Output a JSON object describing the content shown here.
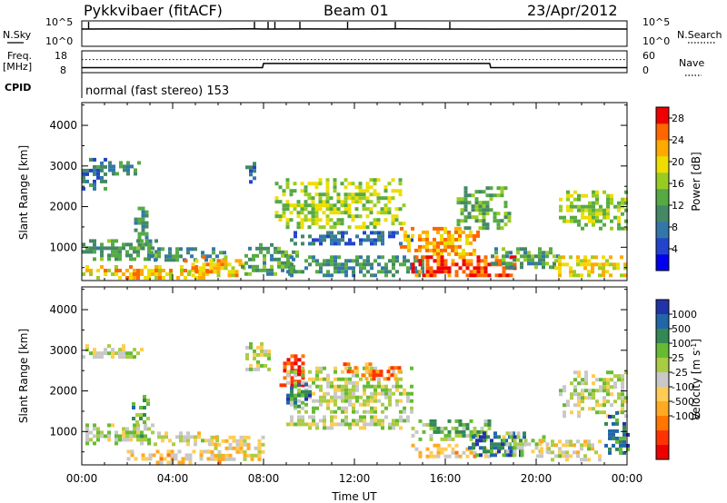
{
  "header": {
    "station": "Pykkvibaer (fitACF)",
    "beam": "Beam 01",
    "date": "23/Apr/2012"
  },
  "noise_panel": {
    "left_label": "N.Sky",
    "right_label": "N.Search",
    "left_ticks": [
      "10^5",
      "10^0"
    ],
    "right_ticks": [
      "10^5",
      "10^0"
    ]
  },
  "freq_panel": {
    "left_label_1": "Freq.",
    "left_label_2": "[MHz]",
    "right_label": "Nave",
    "left_ticks": [
      "18",
      "8"
    ],
    "right_ticks": [
      "60",
      "0"
    ]
  },
  "cpid": {
    "label": "CPID",
    "text": "normal (fast stereo) 153"
  },
  "chart_data": [
    {
      "type": "line",
      "name": "noise",
      "x_unit": "hours UT",
      "xlim": [
        0,
        24
      ],
      "log_scale": true,
      "left_ylim": [
        1,
        100000
      ],
      "series": [
        {
          "name": "N.Sky",
          "style": "solid",
          "x": [
            0,
            2,
            4,
            6,
            7.5,
            8,
            10,
            12,
            14,
            16,
            18,
            20,
            22,
            24
          ],
          "values": [
            2500,
            2600,
            2400,
            2500,
            2700,
            2500,
            2600,
            2500,
            2800,
            2500,
            2400,
            2500,
            2600,
            2500
          ]
        }
      ],
      "spikes_x": [
        0.3,
        7.6,
        8.2,
        8.5,
        9.6,
        11.7,
        13.8,
        16.2
      ]
    },
    {
      "type": "line",
      "name": "frequency",
      "x_unit": "hours UT",
      "xlim": [
        0,
        24
      ],
      "left_ylim": [
        8,
        18
      ],
      "right_ylim": [
        0,
        60
      ],
      "series": [
        {
          "name": "Freq.",
          "style": "solid",
          "axis": "left",
          "x": [
            0,
            7.95,
            8.0,
            17.95,
            18.0,
            24
          ],
          "values": [
            10.3,
            10.3,
            12.2,
            12.2,
            10.3,
            10.3
          ]
        },
        {
          "name": "Nave",
          "style": "dotted",
          "axis": "right",
          "x": [
            0,
            24
          ],
          "values": [
            36,
            36
          ]
        }
      ]
    },
    {
      "type": "heatmap",
      "name": "power",
      "x_unit": "hours UT",
      "xlim": [
        0,
        24
      ],
      "ylim": [
        180,
        4560
      ],
      "ylabel": "Slant Range [km]",
      "yticks": [
        "1000",
        "2000",
        "3000",
        "4000"
      ],
      "ytick_values": [
        1000,
        2000,
        3000,
        4000
      ],
      "colorbar": {
        "label": "Power [dB]",
        "ticks": [
          "4",
          "8",
          "12",
          "16",
          "20",
          "24",
          "28"
        ],
        "tick_values": [
          4,
          8,
          12,
          16,
          20,
          24,
          28
        ],
        "range": [
          0,
          30
        ],
        "colors": [
          "#0000ee",
          "#2244cc",
          "#3377aa",
          "#448866",
          "#55aa44",
          "#99cc22",
          "#eedd00",
          "#ffaa00",
          "#ff6600",
          "#ee0000"
        ]
      },
      "regions": [
        {
          "t0": 0.0,
          "t1": 1.1,
          "r0": 2450,
          "r1": 3200,
          "level": 0.28
        },
        {
          "t0": 1.0,
          "t1": 2.6,
          "r0": 2850,
          "r1": 3120,
          "level": 0.33
        },
        {
          "t0": 0.0,
          "t1": 3.3,
          "r0": 720,
          "r1": 1200,
          "level": 0.4
        },
        {
          "t0": 0.0,
          "t1": 5.5,
          "r0": 260,
          "r1": 560,
          "level": 0.72
        },
        {
          "t0": 2.3,
          "t1": 3.0,
          "r0": 1000,
          "r1": 2000,
          "level": 0.35
        },
        {
          "t0": 3.0,
          "t1": 6.3,
          "r0": 720,
          "r1": 1000,
          "level": 0.35
        },
        {
          "t0": 4.5,
          "t1": 7.2,
          "r0": 280,
          "r1": 800,
          "level": 0.7
        },
        {
          "t0": 7.2,
          "t1": 7.6,
          "r0": 2600,
          "r1": 3100,
          "level": 0.25
        },
        {
          "t0": 7.0,
          "t1": 9.5,
          "r0": 300,
          "r1": 1100,
          "level": 0.4
        },
        {
          "t0": 8.5,
          "t1": 14.2,
          "r0": 1500,
          "r1": 2700,
          "level": 0.55
        },
        {
          "t0": 9.0,
          "t1": 14.5,
          "r0": 1100,
          "r1": 1400,
          "level": 0.25
        },
        {
          "t0": 9.0,
          "t1": 15.0,
          "r0": 350,
          "r1": 800,
          "level": 0.35
        },
        {
          "t0": 14.0,
          "t1": 17.5,
          "r0": 850,
          "r1": 1500,
          "level": 0.75
        },
        {
          "t0": 14.5,
          "t1": 19.2,
          "r0": 280,
          "r1": 800,
          "level": 0.88
        },
        {
          "t0": 16.5,
          "t1": 18.8,
          "r0": 1500,
          "r1": 2500,
          "level": 0.45
        },
        {
          "t0": 18.0,
          "t1": 21.0,
          "r0": 500,
          "r1": 1000,
          "level": 0.4
        },
        {
          "t0": 20.8,
          "t1": 24.0,
          "r0": 300,
          "r1": 800,
          "level": 0.65
        },
        {
          "t0": 21.0,
          "t1": 24.0,
          "r0": 1500,
          "r1": 2400,
          "level": 0.55
        }
      ]
    },
    {
      "type": "heatmap",
      "name": "velocity",
      "x_unit": "hours UT",
      "xlim": [
        0,
        24
      ],
      "ylim": [
        180,
        4560
      ],
      "xlabel": "Time UT",
      "ylabel": "Slant Range [km]",
      "xticks": [
        "00:00",
        "04:00",
        "08:00",
        "12:00",
        "16:00",
        "20:00",
        "00:00"
      ],
      "xtick_values": [
        0,
        4,
        8,
        12,
        16,
        20,
        24
      ],
      "yticks": [
        "1000",
        "2000",
        "3000",
        "4000"
      ],
      "ytick_values": [
        1000,
        2000,
        3000,
        4000
      ],
      "colorbar": {
        "label": "Velocity [m s",
        "label_sup": "-1",
        "label_close": "]",
        "ticks": [
          "1000",
          "500",
          "100",
          "25",
          "-25",
          "-100",
          "-500",
          "-1000"
        ],
        "colors": [
          "#2233aa",
          "#2266aa",
          "#338855",
          "#66bb33",
          "#aacc44",
          "#c8c8c8",
          "#ffcc55",
          "#ffaa22",
          "#ff7700",
          "#ff3300",
          "#ee0000"
        ]
      },
      "regions": [
        {
          "t0": 0.0,
          "t1": 2.6,
          "r0": 2850,
          "r1": 3150,
          "level": 0.45
        },
        {
          "t0": 0.0,
          "t1": 3.2,
          "r0": 700,
          "r1": 1200,
          "level": 0.42
        },
        {
          "t0": 2.2,
          "t1": 3.0,
          "r0": 1200,
          "r1": 1900,
          "level": 0.3
        },
        {
          "t0": 1.5,
          "t1": 6.0,
          "r0": 280,
          "r1": 550,
          "level": 0.62
        },
        {
          "t0": 3.0,
          "t1": 6.0,
          "r0": 700,
          "r1": 1000,
          "level": 0.5
        },
        {
          "t0": 5.5,
          "t1": 8.0,
          "r0": 300,
          "r1": 900,
          "level": 0.58
        },
        {
          "t0": 7.2,
          "t1": 8.3,
          "r0": 2500,
          "r1": 3200,
          "level": 0.45
        },
        {
          "t0": 8.7,
          "t1": 9.8,
          "r0": 2100,
          "r1": 2900,
          "level": 0.88
        },
        {
          "t0": 9.0,
          "t1": 14.5,
          "r0": 1500,
          "r1": 2600,
          "level": 0.45
        },
        {
          "t0": 9.0,
          "t1": 10.0,
          "r0": 1600,
          "r1": 2200,
          "level": 0.2
        },
        {
          "t0": 11.5,
          "t1": 14.0,
          "r0": 2300,
          "r1": 2700,
          "level": 0.75
        },
        {
          "t0": 9.0,
          "t1": 14.5,
          "r0": 1100,
          "r1": 1400,
          "level": 0.45
        },
        {
          "t0": 14.5,
          "t1": 18.0,
          "r0": 800,
          "r1": 1300,
          "level": 0.35
        },
        {
          "t0": 14.5,
          "t1": 18.5,
          "r0": 350,
          "r1": 700,
          "level": 0.62
        },
        {
          "t0": 17.0,
          "t1": 19.5,
          "r0": 400,
          "r1": 1000,
          "level": 0.15
        },
        {
          "t0": 18.5,
          "t1": 20.5,
          "r0": 400,
          "r1": 1000,
          "level": 0.45
        },
        {
          "t0": 21.0,
          "t1": 24.0,
          "r0": 1400,
          "r1": 2500,
          "level": 0.45
        },
        {
          "t0": 20.0,
          "t1": 23.0,
          "r0": 300,
          "r1": 800,
          "level": 0.5
        },
        {
          "t0": 23.0,
          "t1": 24.0,
          "r0": 500,
          "r1": 1500,
          "level": 0.2
        }
      ]
    }
  ]
}
